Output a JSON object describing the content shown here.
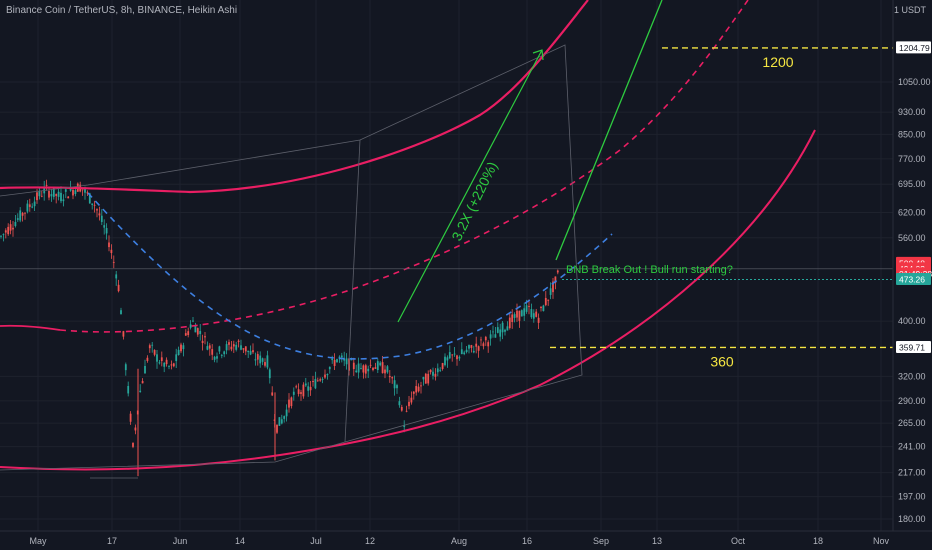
{
  "header": {
    "title": "Binance Coin / TetherUS, 8h, BINANCE, Heikin Ashi",
    "unit": "1 USDT"
  },
  "chart_data": {
    "type": "candlestick",
    "ylim": [
      175,
      1500
    ],
    "y_scale": "log",
    "y_ticks": [
      {
        "label": "1050.00",
        "value": 1050
      },
      {
        "label": "930.00",
        "value": 930
      },
      {
        "label": "850.00",
        "value": 850
      },
      {
        "label": "770.00",
        "value": 770
      },
      {
        "label": "695.00",
        "value": 695
      },
      {
        "label": "620.00",
        "value": 620
      },
      {
        "label": "560.00",
        "value": 560
      },
      {
        "label": "400.00",
        "value": 400
      },
      {
        "label": "320.00",
        "value": 320
      },
      {
        "label": "290.00",
        "value": 290
      },
      {
        "label": "265.00",
        "value": 265
      },
      {
        "label": "241.00",
        "value": 241
      },
      {
        "label": "217.00",
        "value": 217
      },
      {
        "label": "197.00",
        "value": 197
      },
      {
        "label": "180.00",
        "value": 180
      }
    ],
    "x_ticks": [
      "May",
      "17",
      "Jun",
      "14",
      "Jul",
      "12",
      "Aug",
      "16",
      "Sep",
      "13",
      "Oct",
      "18",
      "Nov"
    ],
    "price_labels": [
      {
        "label": "1204.79",
        "value": 1204.79,
        "color": "#ffffff",
        "text_color": "#131722"
      },
      {
        "label": "500.48",
        "value": 505,
        "color": "#f23645",
        "text_color": "#ffffff"
      },
      {
        "label": "494.03",
        "value": 494.03,
        "color": "#f23645",
        "text_color": "#ffffff"
      },
      {
        "label": "01:49:28",
        "value": 484,
        "color": "#f23645",
        "text_color": "#ffffff"
      },
      {
        "label": "473.26",
        "value": 473.26,
        "color": "#26a69a",
        "text_color": "#ffffff"
      },
      {
        "label": "359.71",
        "value": 359.71,
        "color": "#ffffff",
        "text_color": "#131722"
      }
    ],
    "levels": [
      {
        "label": "1200",
        "value": 1204.79,
        "color": "#f5e642"
      },
      {
        "label": "360",
        "value": 359.71,
        "color": "#f5e642"
      }
    ],
    "annotations": {
      "gain": "3.2X (+220%)",
      "breakout": "BNB Break Out ! Bull run starting?"
    },
    "colors": {
      "up": "#26a69a",
      "down": "#ef5350",
      "channel": "#e91e63",
      "projection": "#3d7fe0",
      "arrow": "#2ecc40",
      "level": "#f5e642"
    }
  }
}
